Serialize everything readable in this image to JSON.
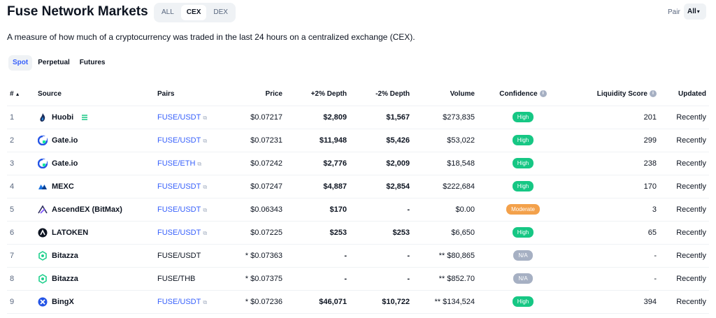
{
  "header": {
    "title": "Fuse Network Markets",
    "segments": [
      {
        "label": "ALL",
        "active": false
      },
      {
        "label": "CEX",
        "active": true
      },
      {
        "label": "DEX",
        "active": false
      }
    ],
    "pair_label": "Pair",
    "pair_value": "All"
  },
  "description": "A measure of how much of a cryptocurrency was traded in the last 24 hours on a centralized exchange (CEX).",
  "tabs": [
    {
      "label": "Spot",
      "active": true
    },
    {
      "label": "Perpetual",
      "active": false
    },
    {
      "label": "Futures",
      "active": false
    }
  ],
  "table": {
    "columns": {
      "num": "#",
      "source": "Source",
      "pairs": "Pairs",
      "price": "Price",
      "depth_plus": "+2% Depth",
      "depth_minus": "-2% Depth",
      "volume": "Volume",
      "confidence": "Confidence",
      "liquidity": "Liquidity Score",
      "updated": "Updated"
    },
    "rows": [
      {
        "num": "1",
        "source": "Huobi",
        "logo": "huobi-flame-icon",
        "verified": true,
        "pair": "FUSE/USDT",
        "pair_link": true,
        "price": "$0.07217",
        "depth_plus": "$2,809",
        "depth_minus": "$1,567",
        "volume": "$273,835",
        "confidence": "High",
        "liquidity": "201",
        "updated": "Recently"
      },
      {
        "num": "2",
        "source": "Gate.io",
        "logo": "gateio-icon",
        "verified": false,
        "pair": "FUSE/USDT",
        "pair_link": true,
        "price": "$0.07231",
        "depth_plus": "$11,948",
        "depth_minus": "$5,426",
        "volume": "$53,022",
        "confidence": "High",
        "liquidity": "299",
        "updated": "Recently"
      },
      {
        "num": "3",
        "source": "Gate.io",
        "logo": "gateio-icon",
        "verified": false,
        "pair": "FUSE/ETH",
        "pair_link": true,
        "price": "$0.07242",
        "depth_plus": "$2,776",
        "depth_minus": "$2,009",
        "volume": "$18,548",
        "confidence": "High",
        "liquidity": "238",
        "updated": "Recently"
      },
      {
        "num": "4",
        "source": "MEXC",
        "logo": "mexc-icon",
        "verified": false,
        "pair": "FUSE/USDT",
        "pair_link": true,
        "price": "$0.07247",
        "depth_plus": "$4,887",
        "depth_minus": "$2,854",
        "volume": "$222,684",
        "confidence": "High",
        "liquidity": "170",
        "updated": "Recently"
      },
      {
        "num": "5",
        "source": "AscendEX (BitMax)",
        "logo": "ascendex-icon",
        "verified": false,
        "pair": "FUSE/USDT",
        "pair_link": true,
        "price": "$0.06343",
        "depth_plus": "$170",
        "depth_minus": "-",
        "volume": "$0.00",
        "confidence": "Moderate",
        "liquidity": "3",
        "updated": "Recently"
      },
      {
        "num": "6",
        "source": "LATOKEN",
        "logo": "latoken-icon",
        "verified": false,
        "pair": "FUSE/USDT",
        "pair_link": true,
        "price": "$0.07225",
        "depth_plus": "$253",
        "depth_minus": "$253",
        "volume": "$6,650",
        "confidence": "High",
        "liquidity": "65",
        "updated": "Recently"
      },
      {
        "num": "7",
        "source": "Bitazza",
        "logo": "bitazza-icon",
        "verified": false,
        "pair": "FUSE/USDT",
        "pair_link": false,
        "price": "* $0.07363",
        "depth_plus": "-",
        "depth_minus": "-",
        "volume": "** $80,865",
        "confidence": "N/A",
        "liquidity": "-",
        "updated": "Recently"
      },
      {
        "num": "8",
        "source": "Bitazza",
        "logo": "bitazza-icon",
        "verified": false,
        "pair": "FUSE/THB",
        "pair_link": false,
        "price": "* $0.07375",
        "depth_plus": "-",
        "depth_minus": "-",
        "volume": "** $852.70",
        "confidence": "N/A",
        "liquidity": "-",
        "updated": "Recently"
      },
      {
        "num": "9",
        "source": "BingX",
        "logo": "bingx-icon",
        "verified": false,
        "pair": "FUSE/USDT",
        "pair_link": true,
        "price": "* $0.07236",
        "depth_plus": "$46,071",
        "depth_minus": "$10,722",
        "volume": "** $134,524",
        "confidence": "High",
        "liquidity": "394",
        "updated": "Recently"
      }
    ]
  },
  "colors": {
    "high": "#16c784",
    "moderate": "#f3a14b",
    "na": "#a6b0c3",
    "link": "#3861fb"
  }
}
